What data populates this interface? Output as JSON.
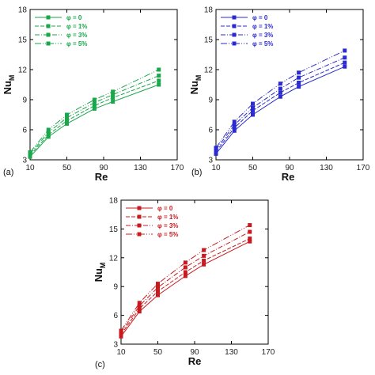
{
  "chart_data": [
    {
      "type": "line",
      "panel_label": "(a)",
      "xlabel": "Re",
      "ylabel": "Nu",
      "ylabel_sub": "M",
      "xlim": [
        10,
        170
      ],
      "ylim": [
        3,
        18
      ],
      "xticks": [
        10,
        50,
        90,
        130,
        170
      ],
      "yticks": [
        3,
        6,
        9,
        12,
        15,
        18
      ],
      "x": [
        10,
        30,
        50,
        80,
        100,
        150
      ],
      "color": "#1aa64a",
      "legend_placement": "top-left",
      "series": [
        {
          "name": "φ = 0",
          "values": [
            3.3,
            5.3,
            6.6,
            8.1,
            8.8,
            10.5
          ]
        },
        {
          "name": "φ = 1%",
          "values": [
            3.45,
            5.5,
            6.9,
            8.4,
            9.2,
            10.9
          ]
        },
        {
          "name": "φ = 3%",
          "values": [
            3.6,
            5.75,
            7.2,
            8.7,
            9.5,
            11.4
          ]
        },
        {
          "name": "φ = 5%",
          "values": [
            3.75,
            6.0,
            7.5,
            9.0,
            9.8,
            12.0
          ]
        }
      ]
    },
    {
      "type": "line",
      "panel_label": "(b)",
      "xlabel": "Re",
      "ylabel": "Nu",
      "ylabel_sub": "M",
      "xlim": [
        10,
        170
      ],
      "ylim": [
        3,
        18
      ],
      "xticks": [
        10,
        50,
        90,
        130,
        170
      ],
      "yticks": [
        3,
        6,
        9,
        12,
        15,
        18
      ],
      "x": [
        10,
        30,
        50,
        80,
        100,
        150
      ],
      "color": "#2a2ad0",
      "legend_placement": "top-left",
      "series": [
        {
          "name": "φ = 0",
          "values": [
            3.6,
            5.9,
            7.5,
            9.3,
            10.3,
            12.3
          ]
        },
        {
          "name": "φ = 1%",
          "values": [
            3.8,
            6.2,
            7.9,
            9.7,
            10.7,
            12.7
          ]
        },
        {
          "name": "φ = 3%",
          "values": [
            4.0,
            6.5,
            8.2,
            10.1,
            11.2,
            13.2
          ]
        },
        {
          "name": "φ = 5%",
          "values": [
            4.2,
            6.8,
            8.6,
            10.6,
            11.7,
            13.9
          ]
        }
      ]
    },
    {
      "type": "line",
      "panel_label": "(c)",
      "xlabel": "Re",
      "ylabel": "Nu",
      "ylabel_sub": "M",
      "xlim": [
        10,
        170
      ],
      "ylim": [
        3,
        18
      ],
      "xticks": [
        10,
        50,
        90,
        130,
        170
      ],
      "yticks": [
        3,
        6,
        9,
        12,
        15,
        18
      ],
      "x": [
        10,
        30,
        50,
        80,
        100,
        150
      ],
      "color": "#c8191e",
      "legend_placement": "top-left",
      "series": [
        {
          "name": "φ = 0",
          "values": [
            3.8,
            6.4,
            8.1,
            10.1,
            11.3,
            13.7
          ]
        },
        {
          "name": "φ = 1%",
          "values": [
            4.0,
            6.7,
            8.5,
            10.5,
            11.7,
            14.0
          ]
        },
        {
          "name": "φ = 3%",
          "values": [
            4.2,
            7.0,
            8.9,
            11.0,
            12.2,
            14.7
          ]
        },
        {
          "name": "φ = 5%",
          "values": [
            4.4,
            7.3,
            9.3,
            11.5,
            12.8,
            15.4
          ]
        }
      ]
    }
  ]
}
